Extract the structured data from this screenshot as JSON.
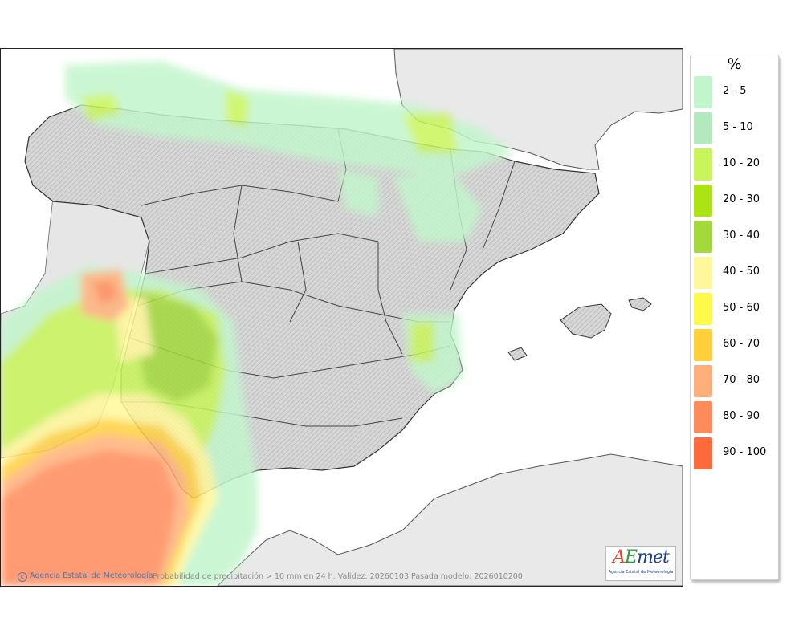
{
  "legend": {
    "unit": "%",
    "classes": [
      {
        "label": "2 - 5",
        "color": "#c2f5cc"
      },
      {
        "label": "5 - 10",
        "color": "#b4e8be"
      },
      {
        "label": "10 - 20",
        "color": "#c9f55a"
      },
      {
        "label": "20 - 30",
        "color": "#ace315"
      },
      {
        "label": "30 - 40",
        "color": "#a3d93a"
      },
      {
        "label": "40 - 50",
        "color": "#fff89a"
      },
      {
        "label": "50 - 60",
        "color": "#fff94a"
      },
      {
        "label": "60 - 70",
        "color": "#ffd03a"
      },
      {
        "label": "70 - 80",
        "color": "#ffb07a"
      },
      {
        "label": "80 - 90",
        "color": "#ff8a5a"
      },
      {
        "label": "90 - 100",
        "color": "#ff6a3a"
      }
    ]
  },
  "credit": "Agencia Estatal de Meteorología",
  "caption": "Probabilidad de precipitación > 10 mm en 24 h. Validez: 20260103 Pasada modelo: 2026010200",
  "logo": {
    "text": "AEmet",
    "subtitle": "Agencia Estatal de Meteorología"
  },
  "colors": {
    "land": "#dcdcdc",
    "neighbor_land": "#e9e9e9",
    "sea": "#ffffff",
    "border": "#333333"
  }
}
